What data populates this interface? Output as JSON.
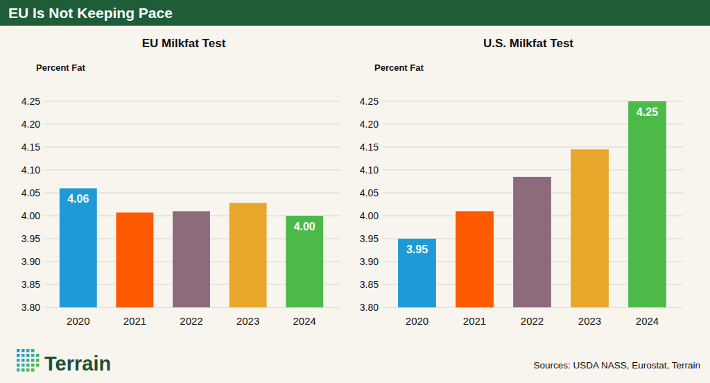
{
  "header": {
    "title": "EU Is Not Keeping Pace"
  },
  "chart_data": [
    {
      "type": "bar",
      "title": "EU Milkfat Test",
      "y_label": "Percent Fat",
      "categories": [
        "2020",
        "2021",
        "2022",
        "2023",
        "2024"
      ],
      "values": [
        4.06,
        4.007,
        4.01,
        4.028,
        4.0
      ],
      "value_labels": [
        "4.06",
        null,
        null,
        null,
        "4.00"
      ],
      "data_labels": true,
      "colors": [
        "#1e9ad6",
        "#ff5a00",
        "#8e6a7d",
        "#e8a62a",
        "#4cba48"
      ],
      "ylim": [
        3.8,
        4.25
      ],
      "yticks": [
        {
          "value": 3.8,
          "label": "3.80"
        },
        3.85,
        {
          "value": 3.9,
          "label": "3.90"
        },
        3.95,
        {
          "value": 4.0,
          "label": "4.00"
        },
        4.05,
        {
          "value": 4.1,
          "label": "4.10"
        },
        4.15,
        {
          "value": 4.2,
          "label": "4.20"
        },
        4.25
      ],
      "grid": true
    },
    {
      "type": "bar",
      "title": "U.S. Milkfat Test",
      "y_label": "Percent Fat",
      "categories": [
        "2020",
        "2021",
        "2022",
        "2023",
        "2024"
      ],
      "values": [
        3.95,
        4.01,
        4.085,
        4.145,
        4.25
      ],
      "value_labels": [
        "3.95",
        null,
        null,
        null,
        "4.25"
      ],
      "data_labels": true,
      "colors": [
        "#1e9ad6",
        "#ff5a00",
        "#8e6a7d",
        "#e8a62a",
        "#4cba48"
      ],
      "ylim": [
        3.8,
        4.25
      ],
      "yticks": [
        {
          "value": 3.8,
          "label": "3.80"
        },
        3.85,
        {
          "value": 3.9,
          "label": "3.90"
        },
        3.95,
        {
          "value": 4.0,
          "label": "4.00"
        },
        4.05,
        {
          "value": 4.1,
          "label": "4.10"
        },
        4.15,
        {
          "value": 4.2,
          "label": "4.20"
        },
        4.25
      ],
      "grid": true
    }
  ],
  "footer": {
    "logo": "Terrain",
    "source": "Sources: USDA NASS, Eurostat, Terrain"
  }
}
